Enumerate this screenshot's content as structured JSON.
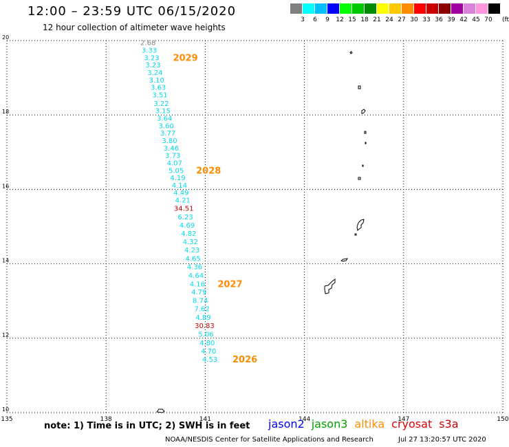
{
  "title": "12:00 – 23:59 UTC 06/15/2020",
  "subtitle": "12 hour collection of altimeter wave heights",
  "legend": {
    "colors": [
      "#808080",
      "#00ffff",
      "#00bfff",
      "#0000ff",
      "#00ff00",
      "#00c800",
      "#008c00",
      "#ffff00",
      "#ffc800",
      "#ff8c00",
      "#ff0000",
      "#c80000",
      "#8c0000",
      "#a000a0",
      "#dc82dc",
      "#ff96dc",
      "#000000"
    ],
    "labels": [
      "3",
      "6",
      "9",
      "12",
      "15",
      "18",
      "21",
      "24",
      "27",
      "30",
      "33",
      "36",
      "39",
      "42",
      "45",
      "70"
    ],
    "unit": "(ft)"
  },
  "axes": {
    "lon_ticks": [
      "135",
      "138",
      "141",
      "144",
      "147",
      "150"
    ],
    "lat_ticks": [
      "20",
      "18",
      "16",
      "14",
      "12",
      "10"
    ]
  },
  "track": [
    {
      "value": "2.68",
      "lat": 19.95,
      "lon": 139.27,
      "color": "#808080"
    },
    {
      "value": "3.33",
      "lat": 19.75,
      "lon": 139.31,
      "color": "#00d8e8"
    },
    {
      "value": "3.23",
      "lat": 19.55,
      "lon": 139.38,
      "color": "#00d8e8"
    },
    {
      "value": "3.23",
      "lat": 19.35,
      "lon": 139.42,
      "color": "#00d8e8"
    },
    {
      "value": "3.24",
      "lat": 19.15,
      "lon": 139.48,
      "color": "#00d8e8"
    },
    {
      "value": "3.10",
      "lat": 18.95,
      "lon": 139.53,
      "color": "#00d8e8"
    },
    {
      "value": "3.63",
      "lat": 18.75,
      "lon": 139.58,
      "color": "#00d8e8"
    },
    {
      "value": "3.51",
      "lat": 18.55,
      "lon": 139.63,
      "color": "#00d8e8"
    },
    {
      "value": "3.22",
      "lat": 18.32,
      "lon": 139.67,
      "color": "#00d8e8"
    },
    {
      "value": "3.15",
      "lat": 18.12,
      "lon": 139.72,
      "color": "#00d8e8"
    },
    {
      "value": "3.64",
      "lat": 17.92,
      "lon": 139.77,
      "color": "#00d8e8"
    },
    {
      "value": "3.60",
      "lat": 17.72,
      "lon": 139.82,
      "color": "#00d8e8"
    },
    {
      "value": "3.77",
      "lat": 17.52,
      "lon": 139.87,
      "color": "#00d8e8"
    },
    {
      "value": "3.80",
      "lat": 17.32,
      "lon": 139.92,
      "color": "#00d8e8"
    },
    {
      "value": "3.46",
      "lat": 17.12,
      "lon": 139.97,
      "color": "#00d8e8"
    },
    {
      "value": "3.73",
      "lat": 16.92,
      "lon": 140.02,
      "color": "#00d8e8"
    },
    {
      "value": "4.07",
      "lat": 16.72,
      "lon": 140.07,
      "color": "#00d8e8"
    },
    {
      "value": "5.05",
      "lat": 16.52,
      "lon": 140.12,
      "color": "#00d8e8"
    },
    {
      "value": "4.19",
      "lat": 16.32,
      "lon": 140.17,
      "color": "#00d8e8"
    },
    {
      "value": "4.14",
      "lat": 16.12,
      "lon": 140.22,
      "color": "#00d8e8"
    },
    {
      "value": "4.49",
      "lat": 15.92,
      "lon": 140.27,
      "color": "#00d8e8"
    },
    {
      "value": "4.21",
      "lat": 15.72,
      "lon": 140.32,
      "color": "#00d8e8"
    },
    {
      "value": "34.51",
      "lat": 15.5,
      "lon": 140.35,
      "color": "#c80000"
    },
    {
      "value": "6.23",
      "lat": 15.27,
      "lon": 140.4,
      "color": "#00d8e8"
    },
    {
      "value": "4.69",
      "lat": 15.05,
      "lon": 140.45,
      "color": "#00d8e8"
    },
    {
      "value": "4.82",
      "lat": 14.82,
      "lon": 140.5,
      "color": "#00d8e8"
    },
    {
      "value": "4.32",
      "lat": 14.6,
      "lon": 140.55,
      "color": "#00d8e8"
    },
    {
      "value": "4.23",
      "lat": 14.38,
      "lon": 140.6,
      "color": "#00d8e8"
    },
    {
      "value": "4.65",
      "lat": 14.15,
      "lon": 140.63,
      "color": "#00d8e8"
    },
    {
      "value": "4.36",
      "lat": 13.93,
      "lon": 140.68,
      "color": "#00d8e8"
    },
    {
      "value": "4.64",
      "lat": 13.7,
      "lon": 140.72,
      "color": "#00d8e8"
    },
    {
      "value": "4.16",
      "lat": 13.47,
      "lon": 140.76,
      "color": "#00d8e8"
    },
    {
      "value": "4.79",
      "lat": 13.25,
      "lon": 140.81,
      "color": "#00d8e8"
    },
    {
      "value": "8.74",
      "lat": 13.02,
      "lon": 140.85,
      "color": "#00d8e8"
    },
    {
      "value": "7.62",
      "lat": 12.8,
      "lon": 140.9,
      "color": "#00d8e8"
    },
    {
      "value": "4.89",
      "lat": 12.57,
      "lon": 140.94,
      "color": "#00d8e8"
    },
    {
      "value": "30.83",
      "lat": 12.35,
      "lon": 140.98,
      "color": "#c80000"
    },
    {
      "value": "5.06",
      "lat": 12.12,
      "lon": 141.02,
      "color": "#00d8e8"
    },
    {
      "value": "4.80",
      "lat": 11.89,
      "lon": 141.06,
      "color": "#00d8e8"
    },
    {
      "value": "4.70",
      "lat": 11.66,
      "lon": 141.1,
      "color": "#00d8e8"
    },
    {
      "value": "4.53",
      "lat": 11.44,
      "lon": 141.14,
      "color": "#00d8e8"
    }
  ],
  "time_labels": [
    {
      "text": "2029",
      "lat": 19.55,
      "lon": 140.4
    },
    {
      "text": "2028",
      "lat": 16.52,
      "lon": 141.1
    },
    {
      "text": "2027",
      "lat": 13.47,
      "lon": 141.75
    },
    {
      "text": "2026",
      "lat": 11.44,
      "lon": 142.2
    }
  ],
  "note": "note: 1) Time is in UTC; 2) SWH is in feet",
  "satellites": [
    {
      "name": "jason2",
      "color": "#0000ff"
    },
    {
      "name": "jason3",
      "color": "#00a000"
    },
    {
      "name": "altika",
      "color": "#ff8c00"
    },
    {
      "name": "cryosat",
      "color": "#e00000"
    },
    {
      "name": "s3a",
      "color": "#c80000"
    }
  ],
  "credit": "NOAA/NESDIS Center for Satellite Applications and Research",
  "timestamp": "Jul 27 13:20:57 UTC 2020"
}
